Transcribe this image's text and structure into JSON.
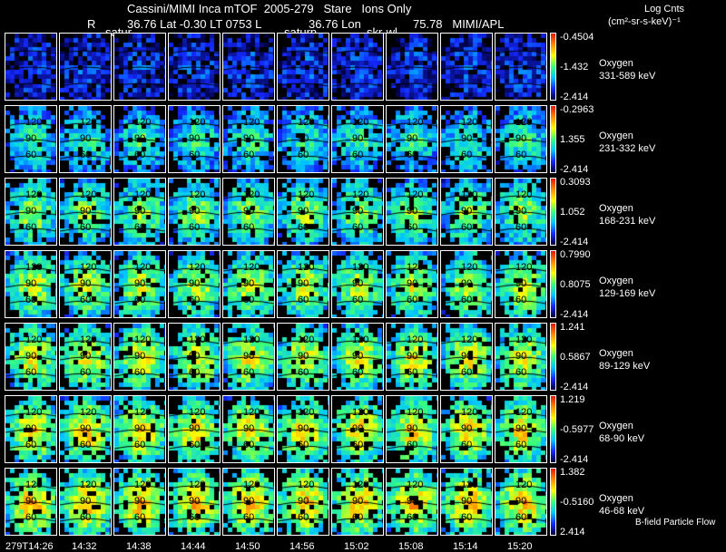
{
  "header": {
    "title": "Cassini/MIMI Inca mTOF  2005-279   Stare   Ions Only",
    "line2_left": "R",
    "line2_lat": "36.76 Lat -0.30 LT 0753 L",
    "line2_lon": "36.76 Lon",
    "line2_right": "75.78   MIMI/APL",
    "sub1": "satur",
    "sub2": "saturn",
    "sub3": "skr-wl"
  },
  "colorbar_title": "Log Cnts",
  "colorbar_units": "(cm²-sr-s-keV)⁻¹",
  "rows": [
    {
      "species": "Oxygen",
      "energy": "331-589 keV",
      "max": "-0.4504",
      "mid": "-1.432",
      "min": "-2.414",
      "level": 0.2
    },
    {
      "species": "Oxygen",
      "energy": "231-332 keV",
      "max": "-0.2963",
      "mid": "1.355",
      "min": "-2.414",
      "level": 0.5
    },
    {
      "species": "Oxygen",
      "energy": "168-231 keV",
      "max": "0.3093",
      "mid": "1.052",
      "min": "-2.414",
      "level": 0.62
    },
    {
      "species": "Oxygen",
      "energy": "129-169 keV",
      "max": "0.7990",
      "mid": "0.8075",
      "min": "-2.414",
      "level": 0.68
    },
    {
      "species": "Oxygen",
      "energy": "89-129 keV",
      "max": "1.241",
      "mid": "0.5867",
      "min": "-2.414",
      "level": 0.72
    },
    {
      "species": "Oxygen",
      "energy": "68-90 keV",
      "max": "1.219",
      "mid": "-0.5977",
      "min": "-2.414",
      "level": 0.76
    },
    {
      "species": "Oxygen",
      "energy": "46-68 keV",
      "max": "1.382",
      "mid": "-0.5160",
      "min": "2.414",
      "level": 0.8
    }
  ],
  "contours": [
    "120",
    "90",
    "60"
  ],
  "footer_note": "B-field Particle Flow",
  "time_ticks": [
    "279T14:26",
    "14:32",
    "14:38",
    "14:44",
    "14:50",
    "14:56",
    "15:02",
    "15:08",
    "15:14",
    "15:20"
  ]
}
